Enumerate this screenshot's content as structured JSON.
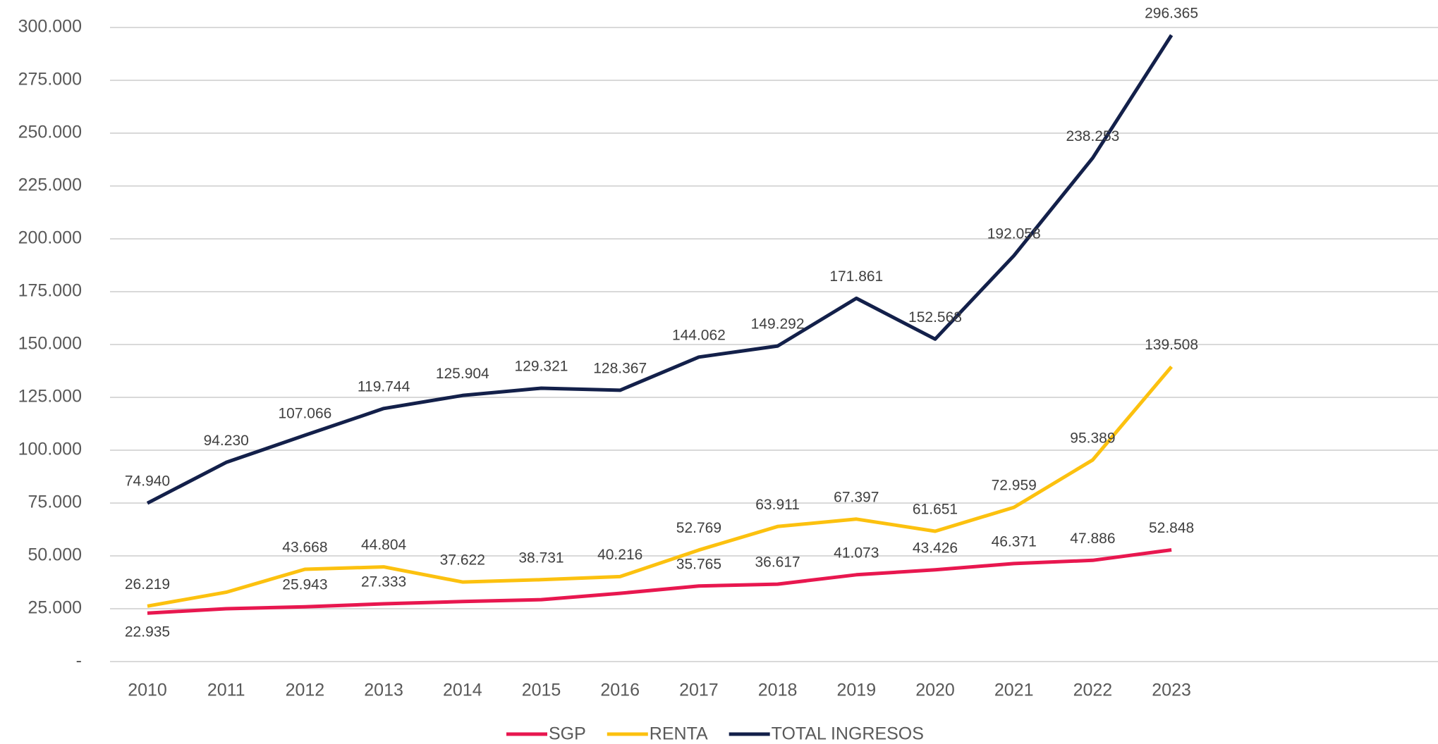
{
  "chart_data": {
    "type": "line",
    "categories": [
      "2010",
      "2011",
      "2012",
      "2013",
      "2014",
      "2015",
      "2016",
      "2017",
      "2018",
      "2019",
      "2020",
      "2021",
      "2022",
      "2023"
    ],
    "series": [
      {
        "name": "SGP",
        "color": "#e8174f",
        "values": [
          22935,
          25000,
          25943,
          27333,
          28400,
          29300,
          32300,
          35765,
          36617,
          41073,
          43426,
          46371,
          47886,
          52848
        ],
        "value_labels": [
          "22.935",
          null,
          "25.943",
          "27.333",
          null,
          null,
          null,
          "35.765",
          "36.617",
          "41.073",
          "43.426",
          "46.371",
          "47.886",
          "52.848"
        ]
      },
      {
        "name": "RENTA",
        "color": "#fcc10f",
        "values": [
          26219,
          32800,
          43668,
          44804,
          37622,
          38731,
          40216,
          52769,
          63911,
          67397,
          61651,
          72959,
          95389,
          139508
        ],
        "value_labels": [
          "26.219",
          null,
          "43.668",
          "44.804",
          "37.622",
          "38.731",
          "40.216",
          "52.769",
          "63.911",
          "67.397",
          "61.651",
          "72.959",
          "95.389",
          "139.508"
        ]
      },
      {
        "name": "TOTAL INGRESOS",
        "color": "#13204a",
        "values": [
          74940,
          94230,
          107066,
          119744,
          125904,
          129321,
          128367,
          144062,
          149292,
          171861,
          152568,
          192058,
          238253,
          296365
        ],
        "value_labels": [
          "74.940",
          "94.230",
          "107.066",
          "119.744",
          "125.904",
          "129.321",
          "128.367",
          "144.062",
          "149.292",
          "171.861",
          "152.568",
          "192.058",
          "238.253",
          "296.365"
        ]
      }
    ],
    "ylim": [
      0,
      300000
    ],
    "yticks": [
      {
        "value": 0,
        "label": "-"
      },
      {
        "value": 25000,
        "label": "25.000"
      },
      {
        "value": 50000,
        "label": "50.000"
      },
      {
        "value": 75000,
        "label": "75.000"
      },
      {
        "value": 100000,
        "label": "100.000"
      },
      {
        "value": 125000,
        "label": "125.000"
      },
      {
        "value": 150000,
        "label": "150.000"
      },
      {
        "value": 175000,
        "label": "175.000"
      },
      {
        "value": 200000,
        "label": "200.000"
      },
      {
        "value": 225000,
        "label": "225.000"
      },
      {
        "value": 250000,
        "label": "250.000"
      },
      {
        "value": 275000,
        "label": "275.000"
      },
      {
        "value": 300000,
        "label": "300.000"
      }
    ],
    "grid": true,
    "legend": "bottom"
  }
}
